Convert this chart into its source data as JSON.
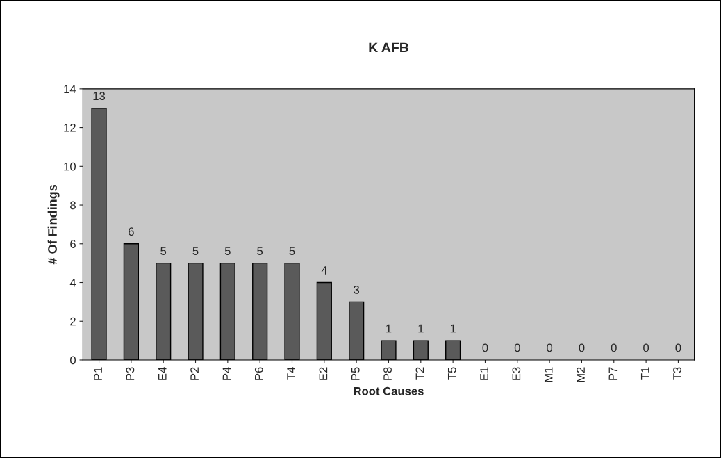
{
  "chart_data": {
    "type": "bar",
    "title": "K AFB",
    "xlabel": "Root Causes",
    "ylabel": "# Of Findings",
    "categories": [
      "P1",
      "P3",
      "E4",
      "P2",
      "P4",
      "P6",
      "T4",
      "E2",
      "P5",
      "P8",
      "T2",
      "T5",
      "E1",
      "E3",
      "M1",
      "M2",
      "P7",
      "T1",
      "T3"
    ],
    "values": [
      13,
      6,
      5,
      5,
      5,
      5,
      5,
      4,
      3,
      1,
      1,
      1,
      0,
      0,
      0,
      0,
      0,
      0,
      0
    ],
    "color": "#5a5a5a",
    "ylim": [
      0,
      14
    ],
    "yticks": [
      0,
      2,
      4,
      6,
      8,
      10,
      12,
      14
    ],
    "data_labels": true
  }
}
